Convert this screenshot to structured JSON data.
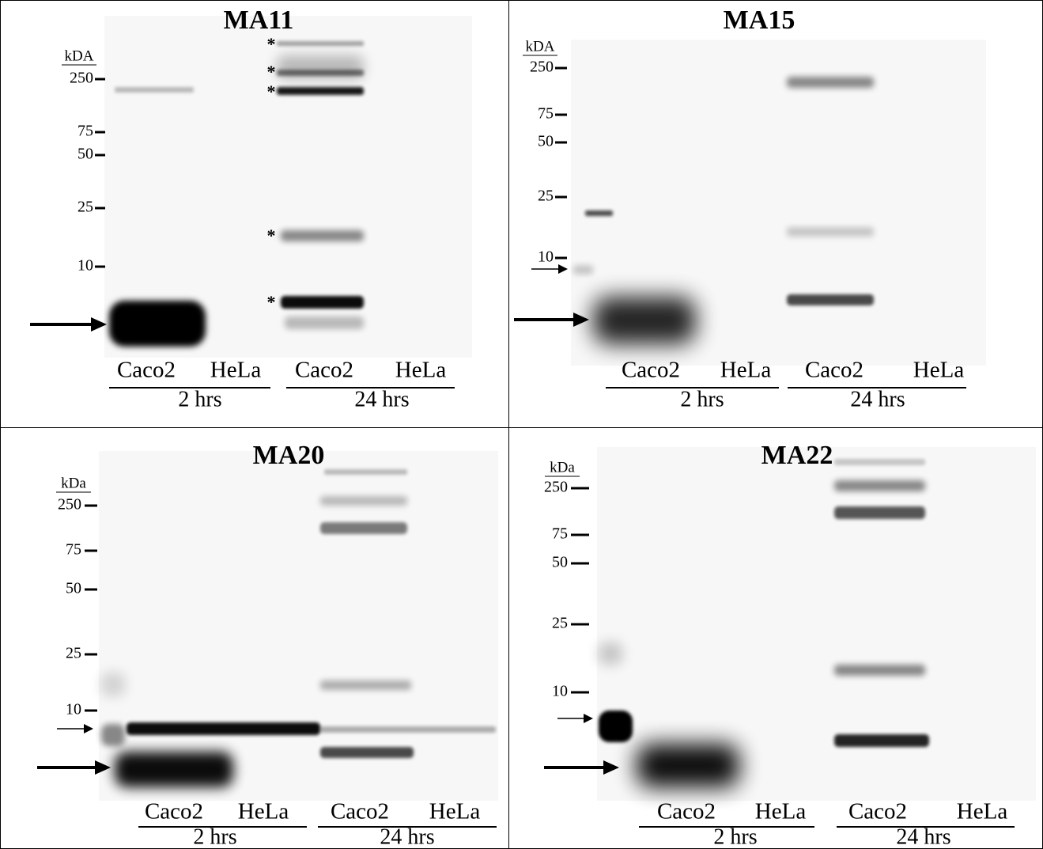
{
  "panels": [
    {
      "title": "MA11",
      "unit": "kDA",
      "markers": [
        250,
        75,
        50,
        25,
        10
      ],
      "lanes": [
        "Caco2",
        "HeLa",
        "Caco2",
        "HeLa"
      ],
      "groups": [
        "2 hrs",
        "24 hrs"
      ],
      "asterisks": [
        "*",
        "*",
        "*",
        "*",
        "*"
      ]
    },
    {
      "title": "MA15",
      "unit": "kDA",
      "markers": [
        250,
        75,
        50,
        25,
        10
      ],
      "lanes": [
        "Caco2",
        "HeLa",
        "Caco2",
        "HeLa"
      ],
      "groups": [
        "2 hrs",
        "24 hrs"
      ]
    },
    {
      "title": "MA20",
      "unit": "kDa",
      "markers": [
        250,
        75,
        50,
        25,
        10
      ],
      "lanes": [
        "Caco2",
        "HeLa",
        "Caco2",
        "HeLa"
      ],
      "groups": [
        "2 hrs",
        "24 hrs"
      ]
    },
    {
      "title": "MA22",
      "unit": "kDa",
      "markers": [
        250,
        75,
        50,
        25,
        10
      ],
      "lanes": [
        "Caco2",
        "HeLa",
        "Caco2",
        "HeLa"
      ],
      "groups": [
        "2 hrs",
        "24 hrs"
      ]
    }
  ]
}
